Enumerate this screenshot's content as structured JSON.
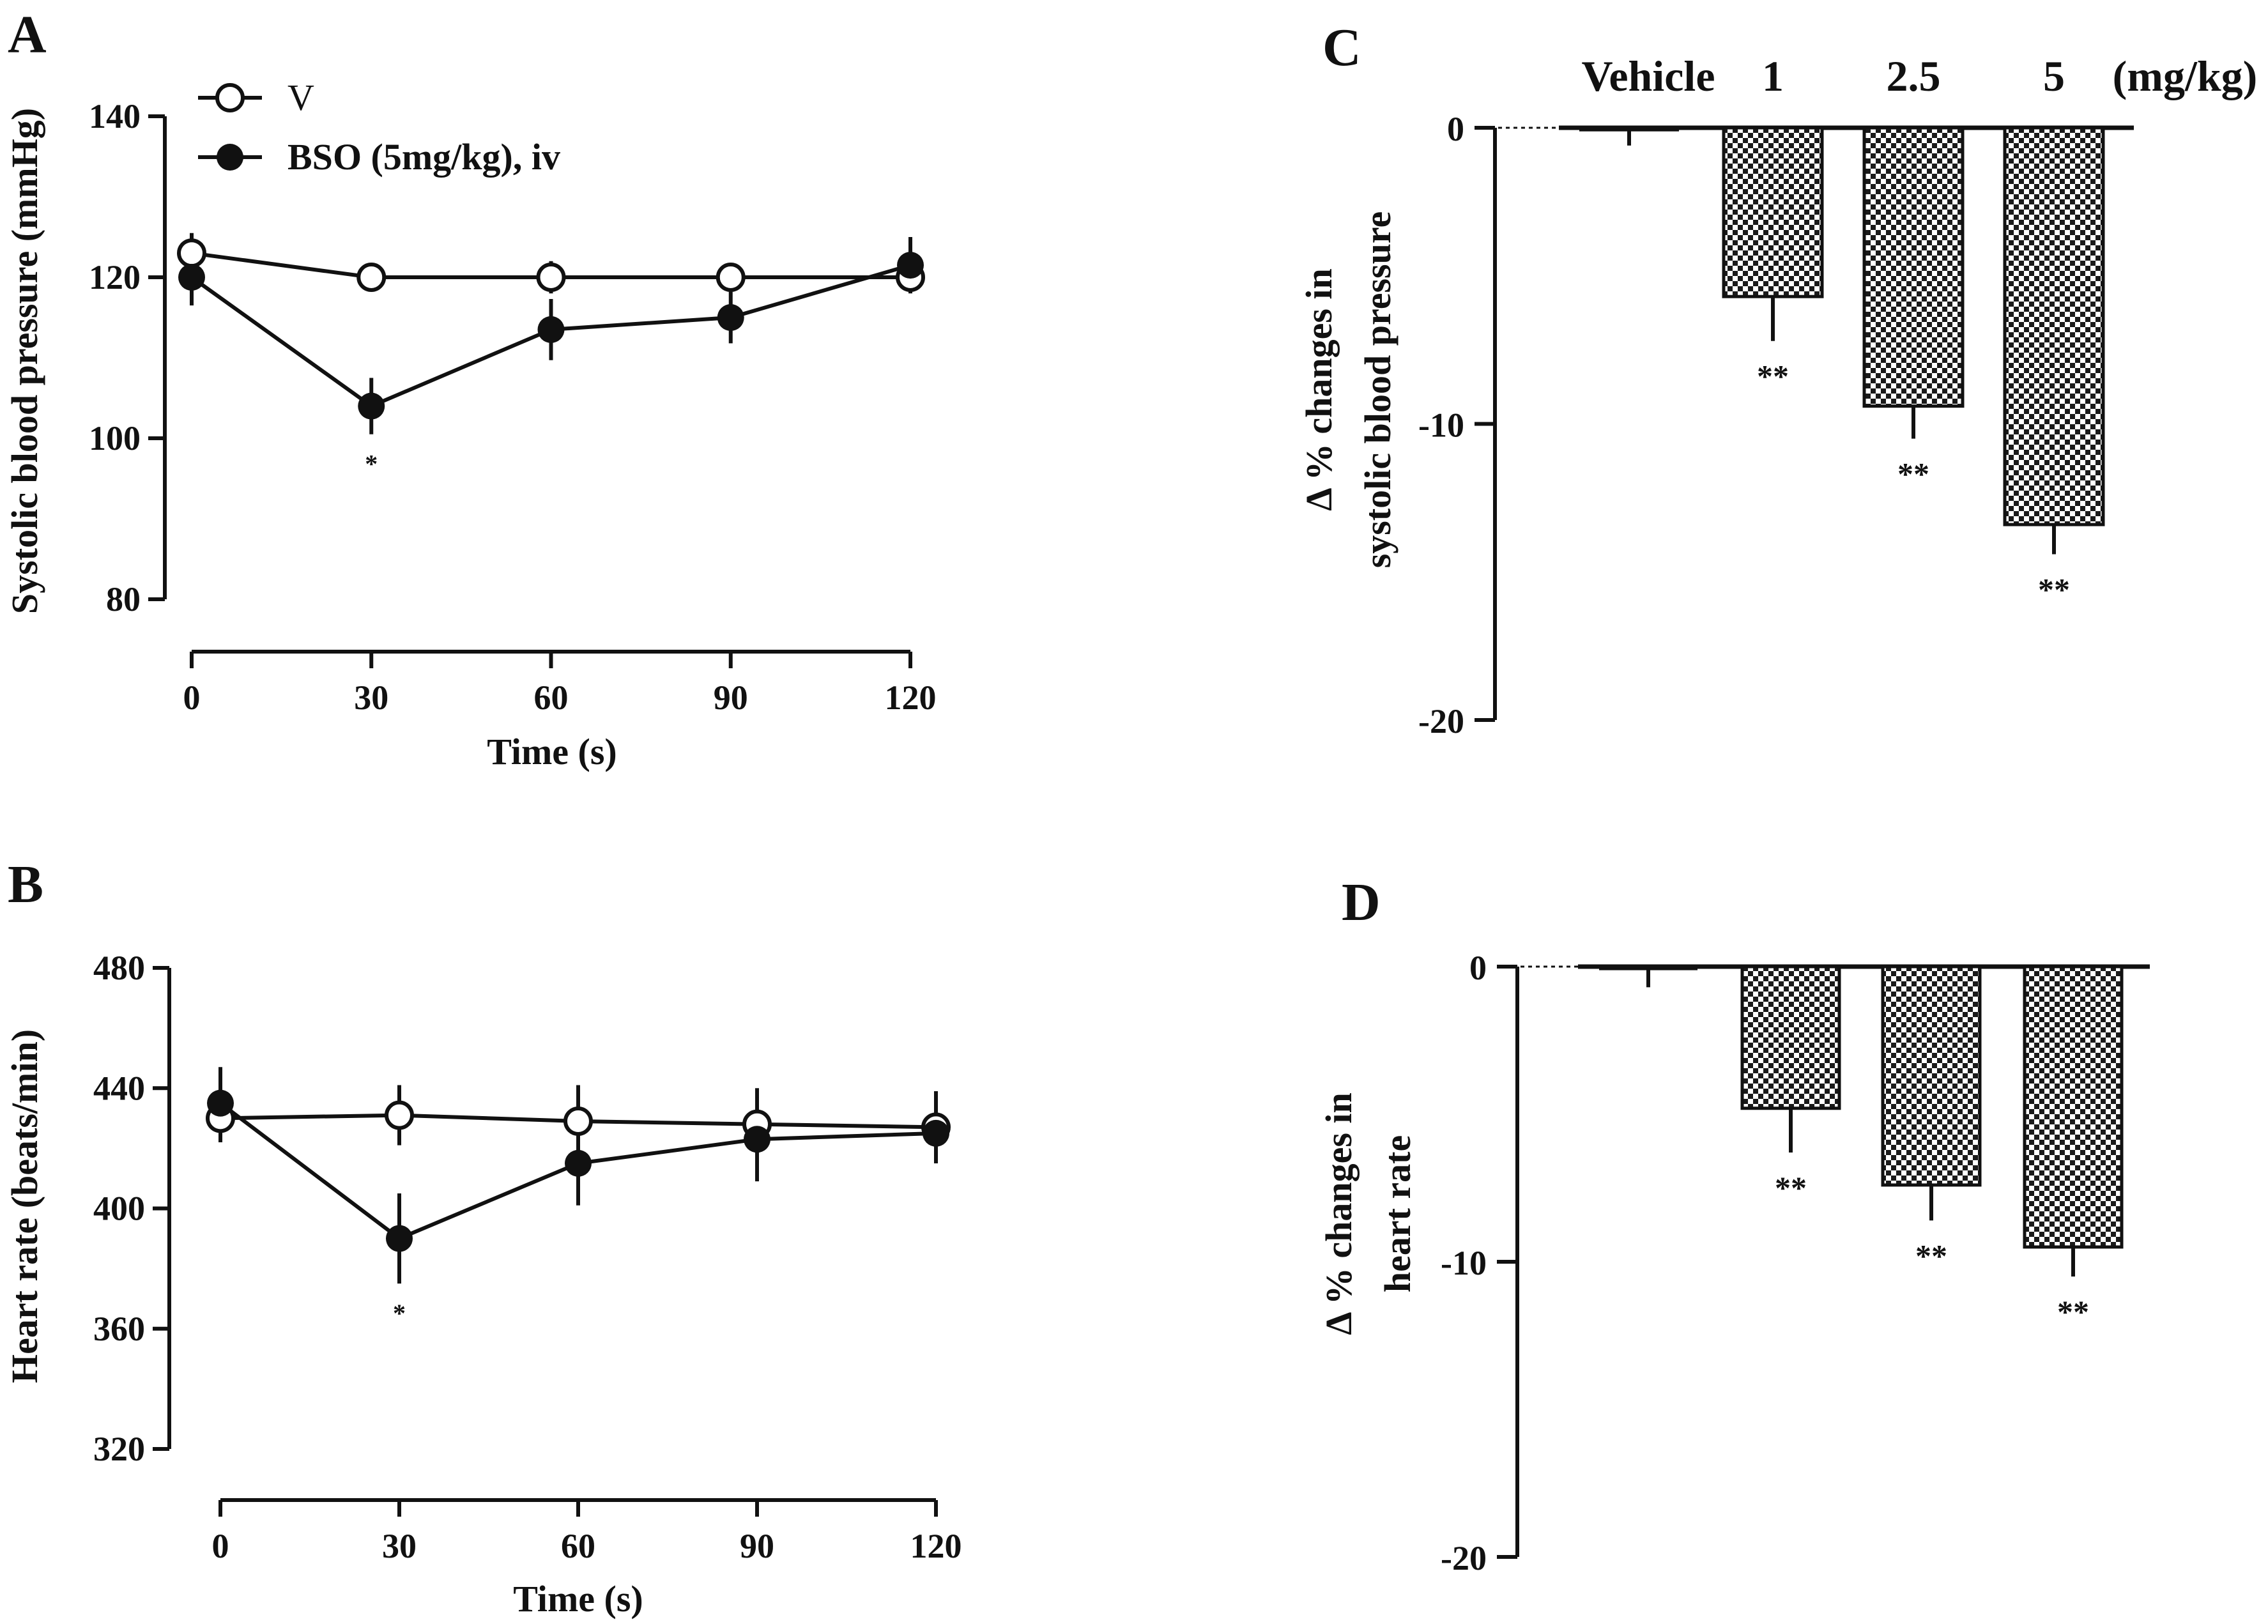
{
  "panels": {
    "A": "A",
    "B": "B",
    "C": "C",
    "D": "D"
  },
  "colors": {
    "axis": "#111111",
    "open_marker_fill": "#ffffff",
    "filled_marker": "#111111",
    "bar_check_dark": "#1a1a1a",
    "bar_check_light": "#ffffff"
  },
  "legend": {
    "vehicle": "V",
    "bso": "BSO (5mg/kg), iv"
  },
  "dose_labels": {
    "vehicle": "Vehicle",
    "d1": "1",
    "d2": "2.5",
    "d3": "5",
    "unit": "(mg/kg)"
  },
  "chart_data": [
    {
      "id": "A",
      "type": "line",
      "xlabel": "Time (s)",
      "ylabel": "Systolic blood pressure (mmHg)",
      "x": [
        0,
        30,
        60,
        90,
        120
      ],
      "xticks": [
        "0",
        "30",
        "60",
        "90",
        "120"
      ],
      "yticks": [
        "80",
        "100",
        "120",
        "140"
      ],
      "xlim": [
        0,
        120
      ],
      "ylim": [
        80,
        140
      ],
      "series": [
        {
          "name": "V",
          "marker": "open-circle",
          "values": [
            123,
            120,
            120,
            120,
            120
          ],
          "err": [
            2.5,
            1.5,
            2,
            1.5,
            1.5
          ]
        },
        {
          "name": "BSO (5mg/kg), iv",
          "marker": "filled-circle",
          "values": [
            120,
            104,
            113.5,
            115,
            121.5
          ],
          "err": [
            3.5,
            3.5,
            3.8,
            3.2,
            3.5
          ]
        }
      ],
      "annotations": [
        {
          "x": 30,
          "text": "*"
        }
      ]
    },
    {
      "id": "B",
      "type": "line",
      "xlabel": "Time (s)",
      "ylabel": "Heart rate (beats/min)",
      "x": [
        0,
        30,
        60,
        90,
        120
      ],
      "xticks": [
        "0",
        "30",
        "60",
        "90",
        "120"
      ],
      "yticks": [
        "320",
        "360",
        "400",
        "440",
        "480"
      ],
      "xlim": [
        0,
        120
      ],
      "ylim": [
        320,
        480
      ],
      "series": [
        {
          "name": "V",
          "marker": "open-circle",
          "values": [
            430,
            431,
            429,
            428,
            427
          ],
          "err": [
            8,
            10,
            12,
            12,
            12
          ]
        },
        {
          "name": "BSO (5mg/kg), iv",
          "marker": "filled-circle",
          "values": [
            435,
            390,
            415,
            423,
            425
          ],
          "err": [
            12,
            15,
            14,
            14,
            10
          ]
        }
      ],
      "annotations": [
        {
          "x": 30,
          "text": "*"
        }
      ]
    },
    {
      "id": "C",
      "type": "bar",
      "ylabel_line1": "Δ % changes in",
      "ylabel_line2": "systolic blood pressure",
      "categories": [
        "Vehicle",
        "1",
        "2.5",
        "5"
      ],
      "values": [
        -0.1,
        -5.7,
        -9.4,
        -13.4
      ],
      "err": [
        0.5,
        1.5,
        1.1,
        1.0
      ],
      "yticks": [
        "0",
        "-10",
        "-20"
      ],
      "ylim": [
        -20,
        0
      ],
      "significance": [
        "",
        "**",
        "**",
        "**"
      ]
    },
    {
      "id": "D",
      "type": "bar",
      "ylabel_line1": "Δ % changes in",
      "ylabel_line2": "heart rate",
      "categories": [
        "Vehicle",
        "1",
        "2.5",
        "5"
      ],
      "values": [
        -0.1,
        -4.8,
        -7.4,
        -9.5
      ],
      "err": [
        0.6,
        1.5,
        1.2,
        1.0
      ],
      "yticks": [
        "0",
        "-10",
        "-20"
      ],
      "ylim": [
        -20,
        0
      ],
      "significance": [
        "",
        "**",
        "**",
        "**"
      ]
    }
  ]
}
